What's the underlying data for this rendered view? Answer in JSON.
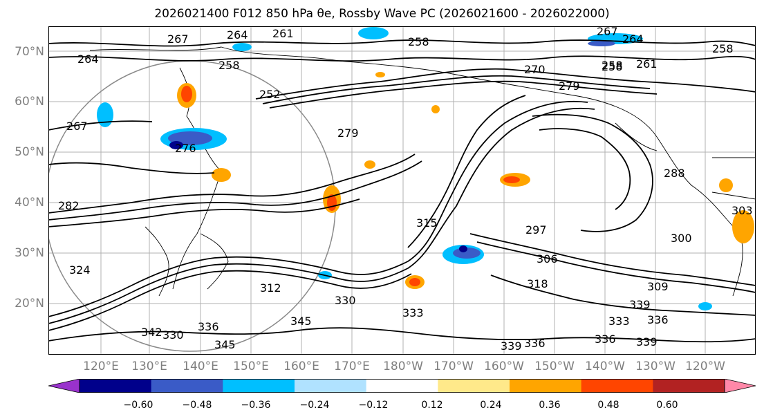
{
  "title": "2026021400 F012 850 hPa θe, Rossby Wave PC (2026021600 - 2026022000)",
  "latitude_labels": [
    "70°N",
    "60°N",
    "50°N",
    "40°N",
    "30°N",
    "20°N"
  ],
  "longitude_labels": [
    "120°E",
    "130°E",
    "140°E",
    "150°E",
    "160°E",
    "170°E",
    "180°W",
    "170°W",
    "160°W",
    "150°W",
    "140°W",
    "130°W",
    "120°W"
  ],
  "colorbar": {
    "colors": [
      "#9932CC",
      "#00008B",
      "#3A5BC7",
      "#00BFFF",
      "#B0E2FF",
      "#FFFFFF",
      "#FFE98A",
      "#FFA500",
      "#FF4500",
      "#B22222",
      "#FF88A8"
    ],
    "tick_labels": [
      "−0.60",
      "−0.48",
      "−0.36",
      "−0.24",
      "−0.12",
      "0.12",
      "0.24",
      "0.36",
      "0.48",
      "0.60"
    ]
  },
  "contour_labels": [
    "267",
    "264",
    "261",
    "258",
    "267",
    "264",
    "258",
    "264",
    "258",
    "258",
    "270",
    "258",
    "261",
    "279",
    "252",
    "267",
    "279",
    "276",
    "288",
    "282",
    "297",
    "303",
    "315",
    "306",
    "300",
    "324",
    "312",
    "318",
    "309",
    "330",
    "333",
    "345",
    "345",
    "339",
    "336",
    "333",
    "336",
    "339",
    "336",
    "342",
    "339",
    "330",
    "336"
  ]
}
